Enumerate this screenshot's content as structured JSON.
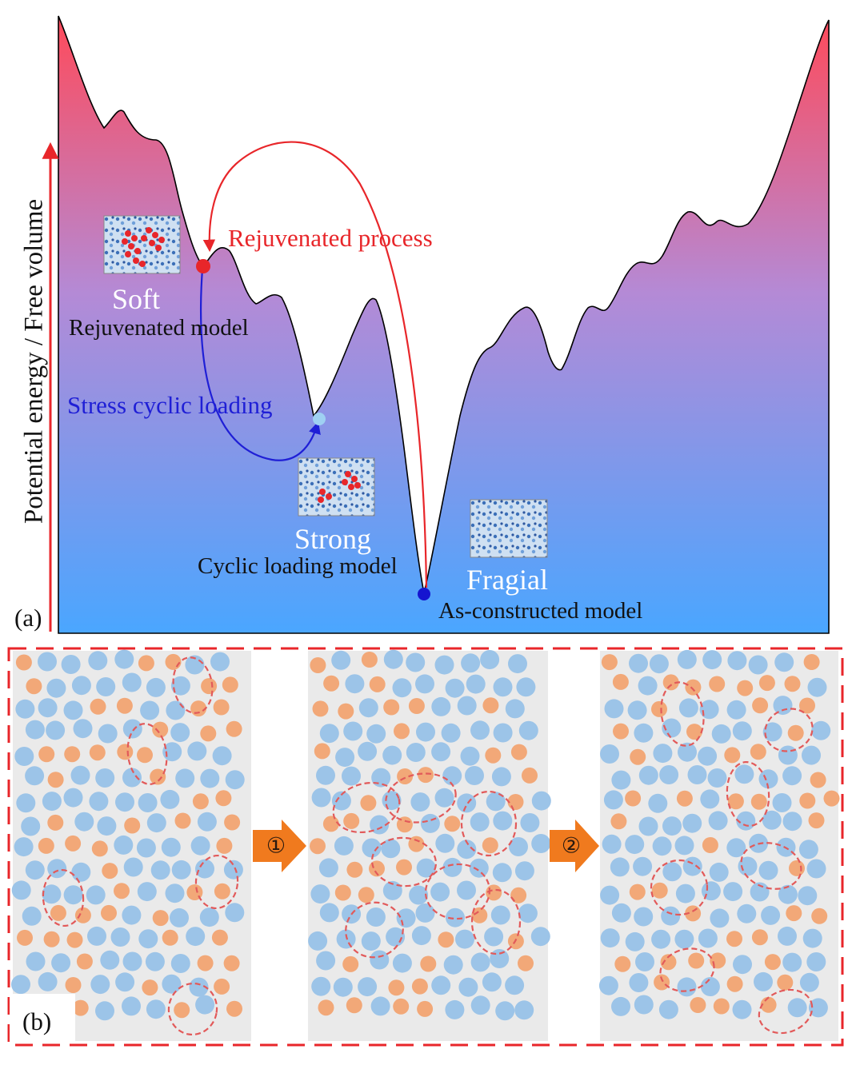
{
  "panel_a": {
    "label": "(a)",
    "axis_label": "Potential energy / Free volume",
    "states": [
      {
        "id": "soft",
        "name": "Soft",
        "model": "Rejuvenated model",
        "dot_color": "#e8262a"
      },
      {
        "id": "strong",
        "name": "Strong",
        "model": "Cyclic loading model",
        "dot_color": "#9fd0f2"
      },
      {
        "id": "fragile",
        "name": "Fragial",
        "model": "As-constructed model",
        "dot_color": "#1515d0"
      }
    ],
    "processes": [
      {
        "id": "rejuvenated",
        "label": "Rejuvenated process",
        "color": "#e8262a"
      },
      {
        "id": "cyclic",
        "label": "Stress cyclic loading",
        "color": "#1f1fd6"
      }
    ],
    "gradient": {
      "top": "#ff4a5a",
      "middle": "#b48ad6",
      "bottom": "#4aa6ff"
    }
  },
  "panel_b": {
    "label": "(b)",
    "steps": [
      "①",
      "②"
    ],
    "colors": {
      "border": "#e8262a",
      "panel_bg": "#eaeaea",
      "atom_blue": "#9cc4e8",
      "atom_orange": "#f2a878",
      "zone": "#e25a5a",
      "arrow": "#f07a1e"
    }
  }
}
